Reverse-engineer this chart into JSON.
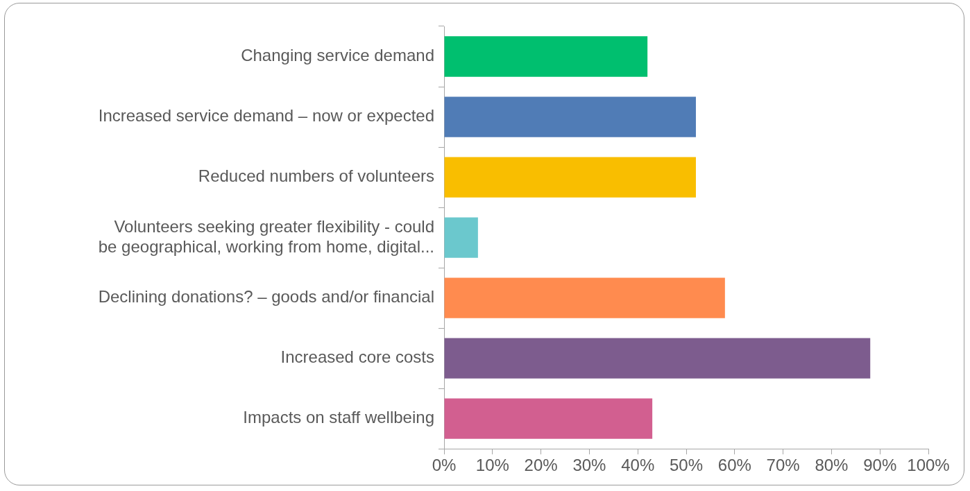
{
  "chart_data": {
    "type": "bar",
    "orientation": "horizontal",
    "categories": [
      "Changing service demand",
      "Increased service demand – now or expected",
      "Reduced numbers of volunteers",
      "Volunteers seeking greater flexibility - could be geographical, working from home, digital...",
      "Declining donations? – goods and/or financial",
      "Increased core costs",
      "Impacts on staff wellbeing"
    ],
    "values": [
      42,
      52,
      52,
      7,
      58,
      88,
      43
    ],
    "colors": [
      "#00bf6f",
      "#507cb6",
      "#f9be00",
      "#6bc8cd",
      "#ff8b4f",
      "#7d5c8e",
      "#d25f90"
    ],
    "xlim": [
      0,
      100
    ],
    "xticks": [
      {
        "value": 0,
        "label": "0%"
      },
      {
        "value": 10,
        "label": "10%"
      },
      {
        "value": 20,
        "label": "20%"
      },
      {
        "value": 30,
        "label": "30%"
      },
      {
        "value": 40,
        "label": "40%"
      },
      {
        "value": 50,
        "label": "50%"
      },
      {
        "value": 60,
        "label": "60%"
      },
      {
        "value": 70,
        "label": "70%"
      },
      {
        "value": 80,
        "label": "80%"
      },
      {
        "value": 90,
        "label": "90%"
      },
      {
        "value": 100,
        "label": "100%"
      }
    ],
    "grid": false,
    "legend": false
  }
}
